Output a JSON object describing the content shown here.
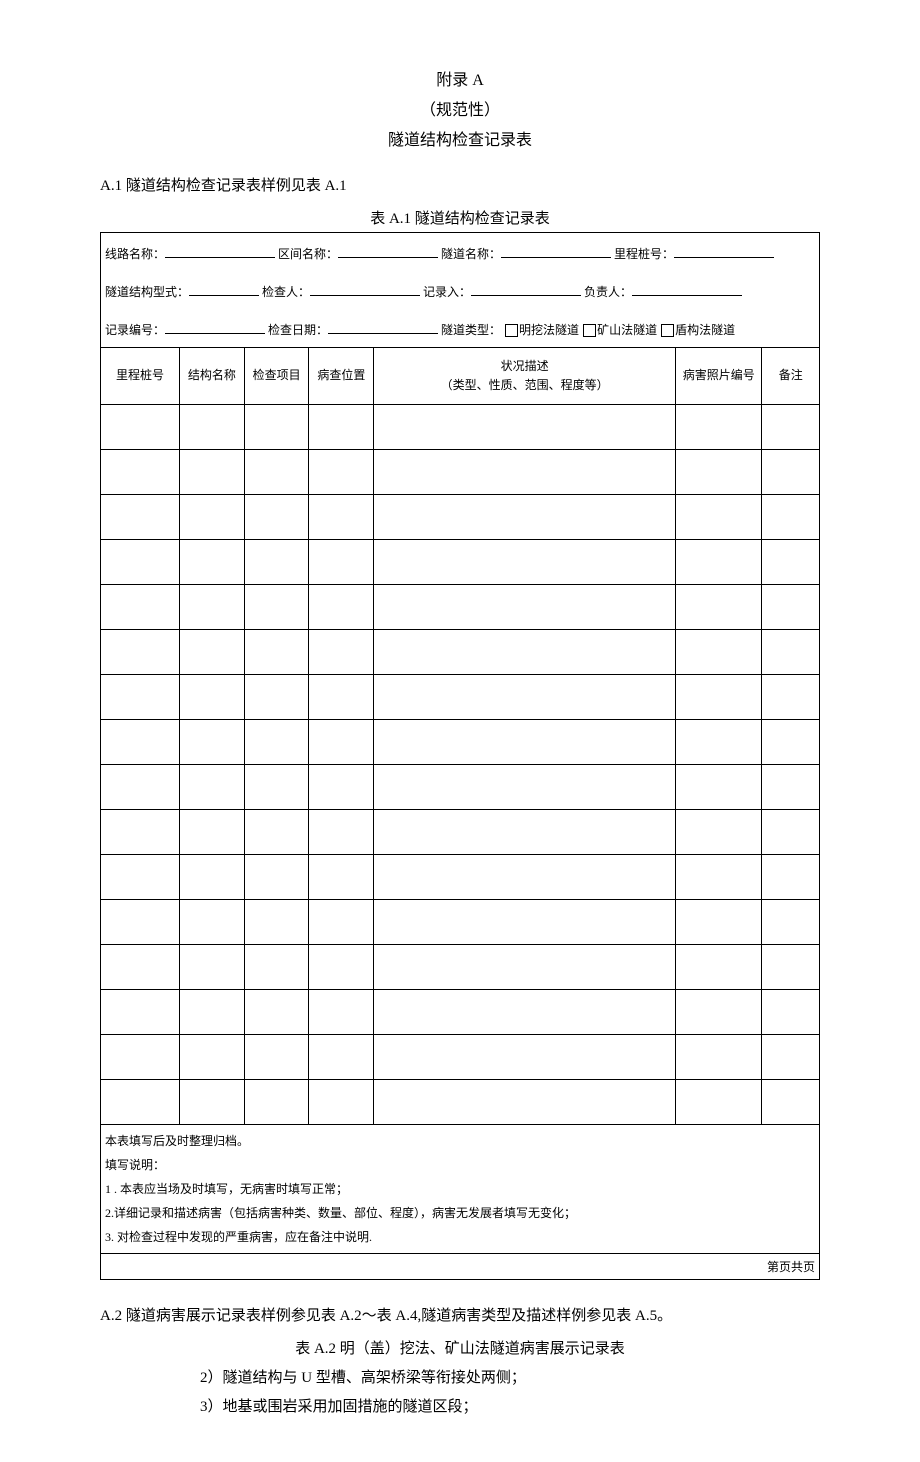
{
  "header": {
    "appendix": "附录 A",
    "normative": "（规范性）",
    "doc_title": "隧道结构检查记录表"
  },
  "section_a1": "A.1 隧道结构检查记录表样例见表 A.1",
  "table_a1_caption": "表 A.1 隧道结构检查记录表",
  "form": {
    "line_name_label": "线路名称：",
    "section_name_label": "区间名称：",
    "tunnel_name_label": "隧道名称：",
    "mile_label": "里程桩号：",
    "struct_type_label": "隧道结构型式：",
    "inspector_label": "检查人：",
    "recorder_label": "记录入：",
    "owner_label": "负责人：",
    "record_no_label": "记录编号：",
    "check_date_label": "检查日期：",
    "tunnel_type_label": "隧道类型：",
    "type_opt1": "明挖法隧道",
    "type_opt2": "矿山法隧道",
    "type_opt3": "盾构法隧道"
  },
  "columns": {
    "c1": "里程桩号",
    "c2": "结构名称",
    "c3": "检查项目",
    "c4": "病查位置",
    "c5_line1": "状况描述",
    "c5_line2": "（类型、性质、范围、程度等）",
    "c6": "病害照片编号",
    "c7": "备注"
  },
  "notes": {
    "n0": "本表填写后及时整理归档。",
    "n1": "填写说明：",
    "n2": "1            . 本表应当场及时填写，无病害时填写正常；",
    "n3": "2.详细记录和描述病害（包括病害种类、数量、部位、程度），病害无发展者填写无变化；",
    "n4": "3. 对检查过程中发现的严重病害，应在备注中说明."
  },
  "page_no": "第页共页",
  "section_a2": "A.2 隧道病害展示记录表样例参见表 A.2～表 A.4,隧道病害类型及描述样例参见表 A.5。",
  "table_a2_caption": "表 A.2 明（盖）挖法、矿山法隧道病害展示记录表",
  "bullet2": "2）隧道结构与 U 型槽、高架桥梁等衔接处两侧；",
  "bullet3": "3）地基或围岩采用加固措施的隧道区段；",
  "col_widths": {
    "c1": "11%",
    "c2": "9%",
    "c3": "9%",
    "c4": "9%",
    "c5": "42%",
    "c6": "12%",
    "c7": "8%"
  },
  "empty_rows": 16,
  "colors": {
    "text": "#000000",
    "bg": "#ffffff",
    "border": "#000000"
  }
}
